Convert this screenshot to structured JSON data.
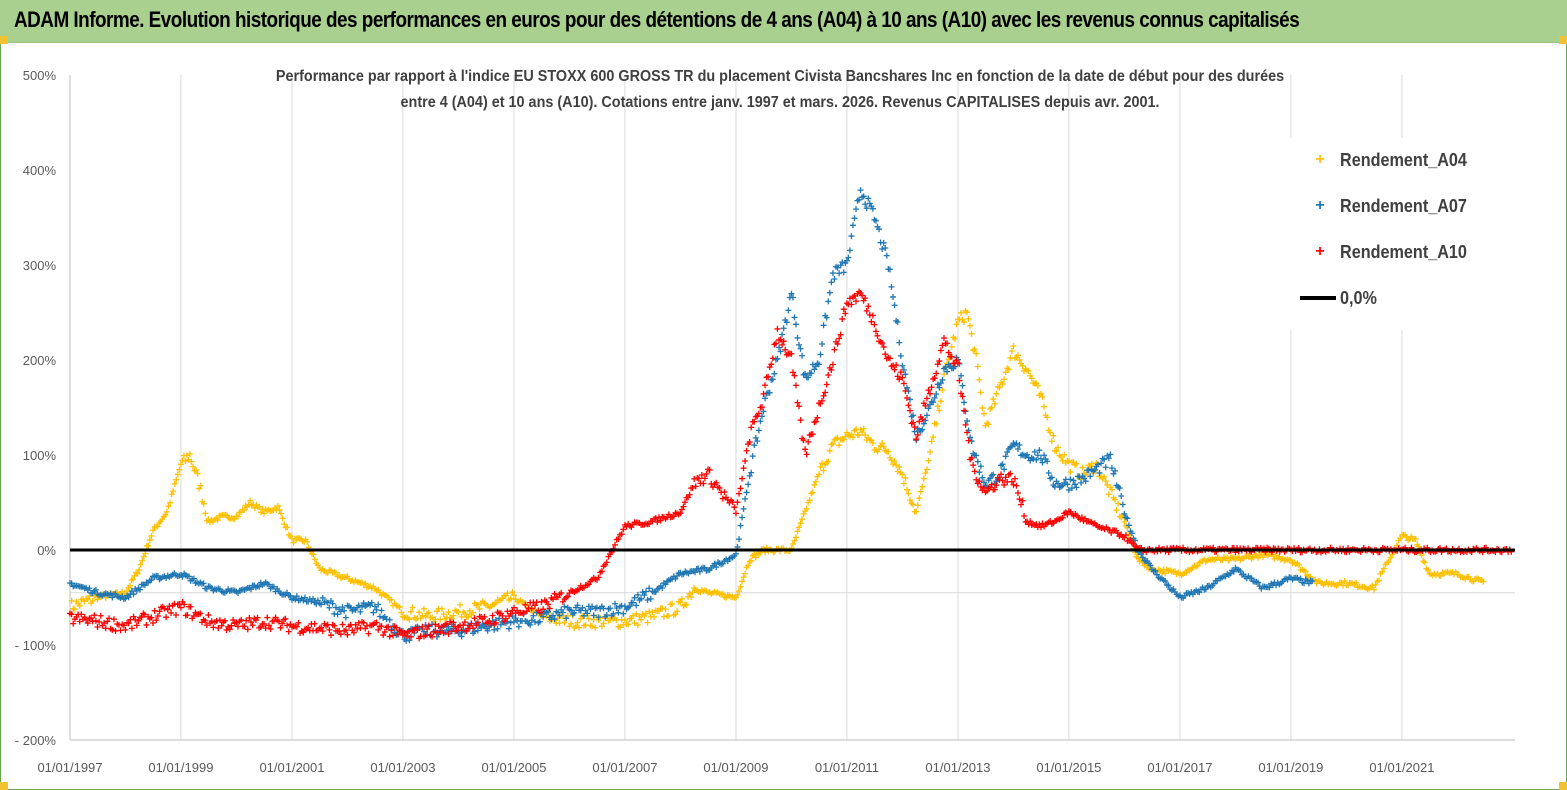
{
  "header": {
    "title": "ADAM Informe. Evolution historique des performances en euros pour des détentions de 4 ans (A04) à 10 ans (A10) avec les revenus connus capitalisés"
  },
  "chart_data": {
    "type": "scatter",
    "title_line1": "Performance par rapport à l'indice EU STOXX 600 GROSS TR  du placement Civista Bancshares Inc en fonction de la date de début pour des durées",
    "title_line2": "entre 4 (A04) et 10 ans (A10).  Cotations entre janv. 1997 et mars. 2026. Revenus CAPITALISES depuis avr. 2001.",
    "xlim": [
      "1997-01-01",
      "2023-01-15"
    ],
    "ylim": [
      -200,
      500
    ],
    "y_ticks": [
      "500%",
      "400%",
      "300%",
      "200%",
      "100%",
      "0%",
      "- 100%",
      "- 200%"
    ],
    "x_ticks": [
      "01/01/1997",
      "01/01/1999",
      "01/01/2001",
      "01/01/2003",
      "01/01/2005",
      "01/01/2007",
      "01/01/2009",
      "01/01/2011",
      "01/01/2013",
      "01/01/2015",
      "01/01/2017",
      "01/01/2019",
      "01/01/2021"
    ],
    "grid": "vertical",
    "legend": "top-right",
    "reference_line": {
      "name": "0,0%",
      "y": 0,
      "color": "#000000"
    },
    "series": [
      {
        "name": "Rendement_A04",
        "color": "#ffc000",
        "marker": "+",
        "points": [
          [
            "1997-01-01",
            -60
          ],
          [
            "1997-07-01",
            -50
          ],
          [
            "1998-01-01",
            -45
          ],
          [
            "1998-04-01",
            -20
          ],
          [
            "1998-07-01",
            20
          ],
          [
            "1998-10-01",
            40
          ],
          [
            "1999-01-01",
            90
          ],
          [
            "1999-03-01",
            100
          ],
          [
            "1999-05-01",
            70
          ],
          [
            "1999-07-01",
            30
          ],
          [
            "1999-10-01",
            35
          ],
          [
            "2000-01-01",
            35
          ],
          [
            "2000-04-01",
            50
          ],
          [
            "2000-07-01",
            40
          ],
          [
            "2000-10-01",
            45
          ],
          [
            "2001-01-01",
            10
          ],
          [
            "2001-04-01",
            10
          ],
          [
            "2001-07-01",
            -20
          ],
          [
            "2002-01-01",
            -30
          ],
          [
            "2002-07-01",
            -40
          ],
          [
            "2003-01-01",
            -65
          ],
          [
            "2003-07-01",
            -70
          ],
          [
            "2004-01-01",
            -65
          ],
          [
            "2004-07-01",
            -60
          ],
          [
            "2005-01-01",
            -50
          ],
          [
            "2005-07-01",
            -70
          ],
          [
            "2006-01-01",
            -75
          ],
          [
            "2006-07-01",
            -75
          ],
          [
            "2007-01-01",
            -75
          ],
          [
            "2007-07-01",
            -70
          ],
          [
            "2008-01-01",
            -60
          ],
          [
            "2008-04-01",
            -40
          ],
          [
            "2008-07-01",
            -45
          ],
          [
            "2009-01-01",
            -50
          ],
          [
            "2009-04-01",
            -10
          ],
          [
            "2009-07-01",
            0
          ],
          [
            "2010-01-01",
            0
          ],
          [
            "2010-04-01",
            40
          ],
          [
            "2010-07-01",
            80
          ],
          [
            "2010-10-01",
            110
          ],
          [
            "2011-01-01",
            120
          ],
          [
            "2011-04-01",
            125
          ],
          [
            "2011-07-01",
            110
          ],
          [
            "2011-10-01",
            105
          ],
          [
            "2012-01-01",
            80
          ],
          [
            "2012-04-01",
            40
          ],
          [
            "2012-07-01",
            100
          ],
          [
            "2012-10-01",
            180
          ],
          [
            "2013-01-01",
            240
          ],
          [
            "2013-03-01",
            250
          ],
          [
            "2013-05-01",
            200
          ],
          [
            "2013-07-01",
            130
          ],
          [
            "2013-10-01",
            170
          ],
          [
            "2014-01-01",
            210
          ],
          [
            "2014-04-01",
            190
          ],
          [
            "2014-07-01",
            160
          ],
          [
            "2014-10-01",
            110
          ],
          [
            "2015-01-01",
            90
          ],
          [
            "2015-04-01",
            80
          ],
          [
            "2015-07-01",
            90
          ],
          [
            "2015-10-01",
            60
          ],
          [
            "2016-01-01",
            30
          ],
          [
            "2016-04-01",
            -10
          ],
          [
            "2016-07-01",
            -20
          ],
          [
            "2017-01-01",
            -25
          ],
          [
            "2017-07-01",
            -10
          ],
          [
            "2018-01-01",
            -10
          ],
          [
            "2018-07-01",
            -5
          ],
          [
            "2019-01-01",
            -10
          ],
          [
            "2019-07-01",
            -35
          ],
          [
            "2020-01-01",
            -35
          ],
          [
            "2020-07-01",
            -40
          ],
          [
            "2021-01-01",
            15
          ],
          [
            "2021-04-01",
            10
          ],
          [
            "2021-07-01",
            -25
          ],
          [
            "2022-01-01",
            -25
          ],
          [
            "2022-07-01",
            -35
          ]
        ]
      },
      {
        "name": "Rendement_A07",
        "color": "#1f77b4",
        "marker": "+",
        "points": [
          [
            "1997-01-01",
            -35
          ],
          [
            "1997-07-01",
            -45
          ],
          [
            "1998-01-01",
            -50
          ],
          [
            "1998-07-01",
            -30
          ],
          [
            "1999-01-01",
            -25
          ],
          [
            "1999-07-01",
            -40
          ],
          [
            "2000-01-01",
            -45
          ],
          [
            "2000-07-01",
            -35
          ],
          [
            "2001-01-01",
            -50
          ],
          [
            "2001-07-01",
            -55
          ],
          [
            "2002-01-01",
            -65
          ],
          [
            "2002-07-01",
            -60
          ],
          [
            "2003-01-01",
            -90
          ],
          [
            "2003-07-01",
            -85
          ],
          [
            "2004-01-01",
            -85
          ],
          [
            "2004-07-01",
            -80
          ],
          [
            "2005-01-01",
            -75
          ],
          [
            "2005-07-01",
            -72
          ],
          [
            "2006-01-01",
            -65
          ],
          [
            "2006-07-01",
            -65
          ],
          [
            "2007-01-01",
            -60
          ],
          [
            "2007-07-01",
            -45
          ],
          [
            "2008-01-01",
            -25
          ],
          [
            "2008-07-01",
            -20
          ],
          [
            "2009-01-01",
            -5
          ],
          [
            "2009-04-01",
            80
          ],
          [
            "2009-07-01",
            150
          ],
          [
            "2009-10-01",
            200
          ],
          [
            "2010-01-01",
            270
          ],
          [
            "2010-04-01",
            180
          ],
          [
            "2010-07-01",
            200
          ],
          [
            "2010-10-01",
            290
          ],
          [
            "2011-01-01",
            300
          ],
          [
            "2011-04-01",
            380
          ],
          [
            "2011-07-01",
            350
          ],
          [
            "2011-10-01",
            300
          ],
          [
            "2012-01-01",
            200
          ],
          [
            "2012-04-01",
            120
          ],
          [
            "2012-07-01",
            150
          ],
          [
            "2012-10-01",
            190
          ],
          [
            "2013-01-01",
            200
          ],
          [
            "2013-04-01",
            110
          ],
          [
            "2013-07-01",
            70
          ],
          [
            "2013-10-01",
            80
          ],
          [
            "2014-01-01",
            110
          ],
          [
            "2014-04-01",
            100
          ],
          [
            "2014-07-01",
            100
          ],
          [
            "2014-10-01",
            70
          ],
          [
            "2015-01-01",
            70
          ],
          [
            "2015-04-01",
            75
          ],
          [
            "2015-07-01",
            85
          ],
          [
            "2015-10-01",
            95
          ],
          [
            "2016-01-01",
            40
          ],
          [
            "2016-04-01",
            0
          ],
          [
            "2016-07-01",
            -20
          ],
          [
            "2017-01-01",
            -50
          ],
          [
            "2017-07-01",
            -40
          ],
          [
            "2018-01-01",
            -20
          ],
          [
            "2018-07-01",
            -40
          ],
          [
            "2019-01-01",
            -30
          ],
          [
            "2019-06-01",
            -35
          ]
        ]
      },
      {
        "name": "Rendement_A10",
        "color": "#ff0000",
        "marker": "+",
        "points": [
          [
            "1997-01-01",
            -72
          ],
          [
            "1997-07-01",
            -75
          ],
          [
            "1998-01-01",
            -80
          ],
          [
            "1998-07-01",
            -70
          ],
          [
            "1999-01-01",
            -60
          ],
          [
            "1999-07-01",
            -75
          ],
          [
            "2000-01-01",
            -80
          ],
          [
            "2000-07-01",
            -75
          ],
          [
            "2001-01-01",
            -80
          ],
          [
            "2001-07-01",
            -82
          ],
          [
            "2002-01-01",
            -85
          ],
          [
            "2002-07-01",
            -80
          ],
          [
            "2003-01-01",
            -90
          ],
          [
            "2003-07-01",
            -85
          ],
          [
            "2004-01-01",
            -80
          ],
          [
            "2004-07-01",
            -75
          ],
          [
            "2005-01-01",
            -65
          ],
          [
            "2005-07-01",
            -60
          ],
          [
            "2006-01-01",
            -45
          ],
          [
            "2006-07-01",
            -30
          ],
          [
            "2007-01-01",
            25
          ],
          [
            "2007-07-01",
            30
          ],
          [
            "2008-01-01",
            40
          ],
          [
            "2008-04-01",
            70
          ],
          [
            "2008-07-01",
            80
          ],
          [
            "2009-01-01",
            40
          ],
          [
            "2009-04-01",
            120
          ],
          [
            "2009-07-01",
            160
          ],
          [
            "2009-10-01",
            230
          ],
          [
            "2010-01-01",
            200
          ],
          [
            "2010-04-01",
            100
          ],
          [
            "2010-07-01",
            150
          ],
          [
            "2010-10-01",
            200
          ],
          [
            "2011-01-01",
            260
          ],
          [
            "2011-04-01",
            270
          ],
          [
            "2011-07-01",
            240
          ],
          [
            "2011-10-01",
            200
          ],
          [
            "2012-01-01",
            180
          ],
          [
            "2012-04-01",
            120
          ],
          [
            "2012-07-01",
            170
          ],
          [
            "2012-10-01",
            220
          ],
          [
            "2013-01-01",
            190
          ],
          [
            "2013-04-01",
            90
          ],
          [
            "2013-07-01",
            60
          ],
          [
            "2013-10-01",
            75
          ],
          [
            "2014-01-01",
            75
          ],
          [
            "2014-04-01",
            30
          ],
          [
            "2014-07-01",
            25
          ],
          [
            "2014-10-01",
            30
          ],
          [
            "2015-01-01",
            40
          ],
          [
            "2015-07-01",
            25
          ],
          [
            "2016-01-01",
            15
          ],
          [
            "2016-04-01",
            0
          ],
          [
            "2017-01-01",
            0
          ],
          [
            "2018-01-01",
            0
          ],
          [
            "2019-01-01",
            0
          ],
          [
            "2020-01-01",
            0
          ],
          [
            "2021-01-01",
            0
          ],
          [
            "2022-01-01",
            0
          ],
          [
            "2023-01-01",
            0
          ]
        ]
      }
    ]
  }
}
